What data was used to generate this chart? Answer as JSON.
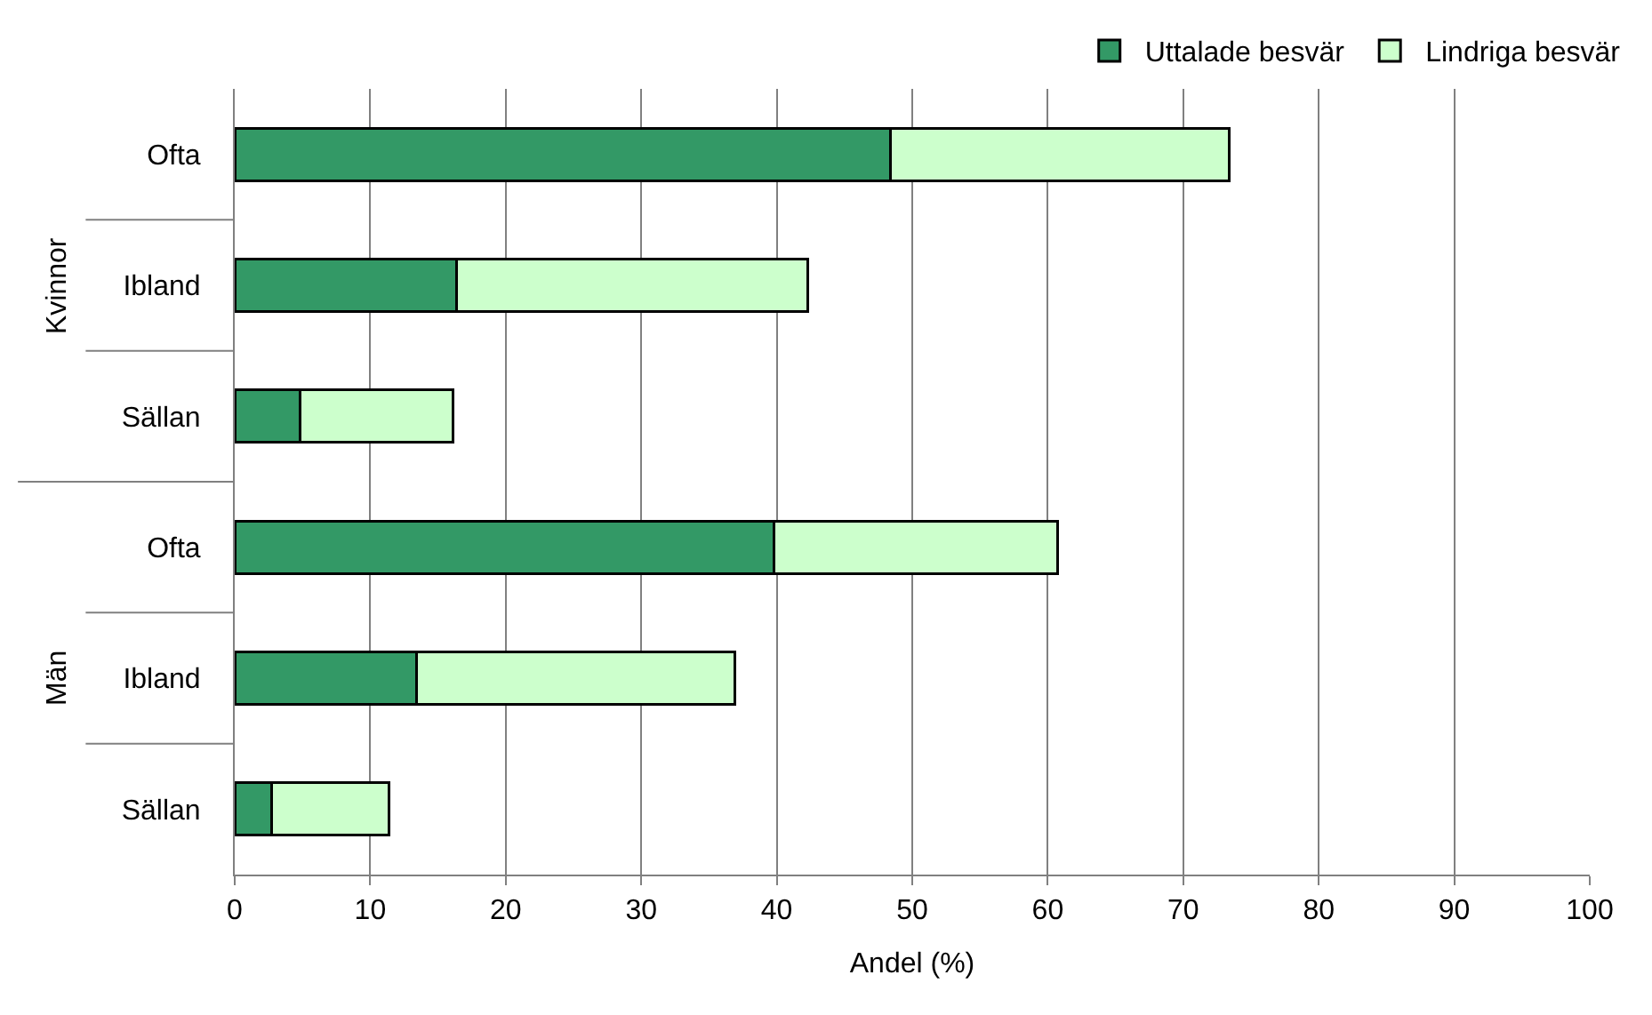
{
  "chart_data": {
    "type": "bar",
    "orientation": "horizontal",
    "stacked": true,
    "categories": [
      "Ofta",
      "Ibland",
      "Sällan",
      "Ofta",
      "Ibland",
      "Sällan"
    ],
    "series": [
      {
        "name": "Uttalade besvär",
        "color": "#339966",
        "values": [
          48.4,
          16.4,
          4.8,
          39.8,
          13.4,
          2.7
        ]
      },
      {
        "name": "Lindriga besvär",
        "color": "#ccffcc",
        "values": [
          25.0,
          25.9,
          11.3,
          20.9,
          23.5,
          8.7
        ]
      }
    ],
    "xlabel": "Andel (%)",
    "xlim": [
      0,
      100
    ],
    "xticks": [
      0,
      10,
      20,
      30,
      40,
      50,
      60,
      70,
      80,
      90,
      100
    ],
    "grid": "x",
    "legend": "top right",
    "annotations": [
      "Kvinnor",
      "Män"
    ]
  }
}
